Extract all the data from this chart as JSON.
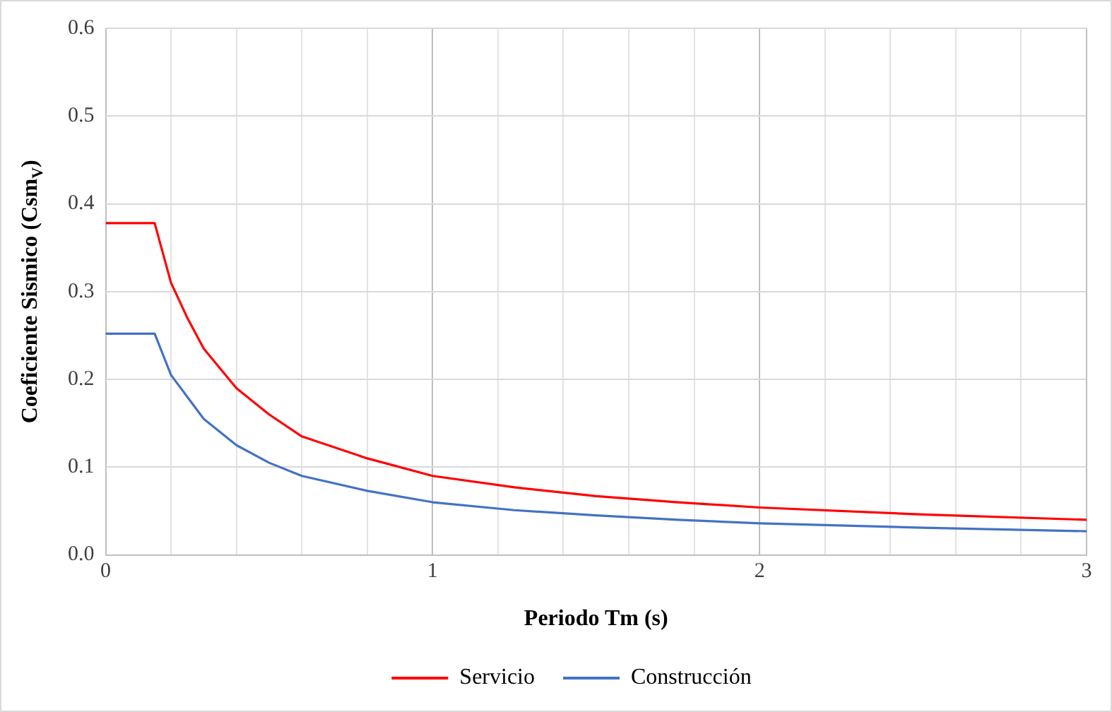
{
  "chart_data": {
    "type": "line",
    "xlabel": "Periodo Tm (s)",
    "ylabel": "Coeficiente Sismico (Csm$_{V}$)",
    "x": [
      0,
      0.15,
      0.2,
      0.25,
      0.3,
      0.4,
      0.5,
      0.6,
      0.8,
      1.0,
      1.25,
      1.5,
      1.75,
      2.0,
      2.5,
      3.0
    ],
    "series": [
      {
        "name": "Servicio",
        "color": "#ff0000",
        "values": [
          0.378,
          0.378,
          0.31,
          0.27,
          0.235,
          0.19,
          0.16,
          0.135,
          0.11,
          0.09,
          0.077,
          0.067,
          0.06,
          0.054,
          0.046,
          0.04
        ]
      },
      {
        "name": "Construcción",
        "color": "#4472c4",
        "values": [
          0.252,
          0.252,
          0.205,
          0.18,
          0.155,
          0.125,
          0.105,
          0.09,
          0.073,
          0.06,
          0.051,
          0.045,
          0.04,
          0.036,
          0.031,
          0.027
        ]
      }
    ],
    "xlim": [
      0,
      3
    ],
    "xticks": [
      0,
      {
        "value": 0.2,
        "label": null
      },
      {
        "value": 0.4,
        "label": null
      },
      {
        "value": 0.6,
        "label": null
      },
      {
        "value": 0.8,
        "label": null
      },
      1,
      {
        "value": 1.2,
        "label": null
      },
      {
        "value": 1.4,
        "label": null
      },
      {
        "value": 1.6,
        "label": null
      },
      {
        "value": 1.8,
        "label": null
      },
      2,
      {
        "value": 2.2,
        "label": null
      },
      {
        "value": 2.4,
        "label": null
      },
      {
        "value": 2.6,
        "label": null
      },
      {
        "value": 2.8,
        "label": null
      },
      3
    ],
    "ylim": [
      0,
      0.6
    ],
    "yticks": [
      {
        "value": 0,
        "label": "0.0"
      },
      {
        "value": 0.1,
        "label": "0.1"
      },
      {
        "value": 0.2,
        "label": "0.2"
      },
      {
        "value": 0.3,
        "label": "0.3"
      },
      {
        "value": 0.4,
        "label": "0.4"
      },
      {
        "value": 0.5,
        "label": "0.5"
      },
      {
        "value": 0.6,
        "label": "0.6"
      }
    ],
    "grid": true,
    "legend": "bottom",
    "marker": "none",
    "line_style": "solid"
  }
}
